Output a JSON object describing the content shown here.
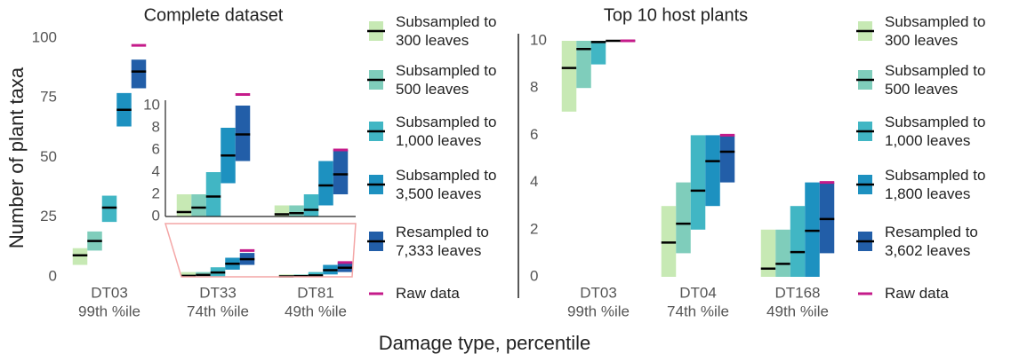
{
  "chart_data": [
    {
      "type": "range",
      "title": "Complete dataset",
      "ylabel": "Number of plant taxa",
      "xlabel": "Damage type, percentile",
      "categories": [
        "DT03",
        "DT33",
        "DT81"
      ],
      "category_percentiles": [
        "99th %ile",
        "74th %ile",
        "49th %ile"
      ],
      "ylim": [
        0,
        100
      ],
      "yticks": [
        0,
        25,
        50,
        75,
        100
      ],
      "series": [
        {
          "name": "Subsampled to 300 leaves",
          "color": "#c7e9b4",
          "low": [
            5,
            0,
            0
          ],
          "high": [
            12,
            2,
            1
          ],
          "median": [
            9,
            0.4,
            0.2
          ]
        },
        {
          "name": "Subsampled to 500 leaves",
          "color": "#7fcdbb",
          "low": [
            11,
            0,
            0
          ],
          "high": [
            19,
            2,
            1
          ],
          "median": [
            15,
            0.8,
            0.3
          ]
        },
        {
          "name": "Subsampled to 1,000 leaves",
          "color": "#41b6c4",
          "low": [
            23,
            0,
            0
          ],
          "high": [
            34,
            4,
            2
          ],
          "median": [
            29,
            1.8,
            0.6
          ]
        },
        {
          "name": "Subsampled to 3,500 leaves",
          "color": "#1d91c0",
          "low": [
            63,
            3,
            1
          ],
          "high": [
            77,
            8,
            5
          ],
          "median": [
            70,
            5.5,
            2.8
          ]
        },
        {
          "name": "Resampled to 7,333 leaves",
          "color": "#225ea8",
          "low": [
            79,
            5,
            2
          ],
          "high": [
            91,
            10,
            6
          ],
          "median": [
            86,
            7.4,
            3.8
          ]
        }
      ],
      "raw": {
        "name": "Raw data",
        "color": "#c51b8a",
        "values": [
          97,
          11,
          6
        ]
      },
      "inset": {
        "ylim": [
          0,
          10
        ],
        "yticks": [
          0,
          2,
          4,
          6,
          8,
          10
        ]
      }
    },
    {
      "type": "range",
      "title": "Top 10 host plants",
      "categories": [
        "DT03",
        "DT04",
        "DT168"
      ],
      "category_percentiles": [
        "99th %ile",
        "74th %ile",
        "49th %ile"
      ],
      "ylim": [
        0,
        10
      ],
      "yticks": [
        0,
        2,
        4,
        6,
        8,
        10
      ],
      "series": [
        {
          "name": "Subsampled to 300 leaves",
          "color": "#c7e9b4",
          "low": [
            7,
            0,
            0
          ],
          "high": [
            10,
            3,
            2
          ],
          "median": [
            8.85,
            1.45,
            0.35
          ]
        },
        {
          "name": "Subsampled to 500 leaves",
          "color": "#7fcdbb",
          "low": [
            8,
            1,
            0
          ],
          "high": [
            10,
            4,
            2
          ],
          "median": [
            9.65,
            2.25,
            0.55
          ]
        },
        {
          "name": "Subsampled to 1,000 leaves",
          "color": "#41b6c4",
          "low": [
            9,
            2,
            0
          ],
          "high": [
            10,
            6,
            3
          ],
          "median": [
            9.95,
            3.65,
            1.05
          ]
        },
        {
          "name": "Subsampled to 1,800 leaves",
          "color": "#1d91c0",
          "low": [
            10,
            3,
            0
          ],
          "high": [
            10,
            6,
            4
          ],
          "median": [
            10,
            4.9,
            1.95
          ]
        },
        {
          "name": "Resampled to 3,602 leaves",
          "color": "#225ea8",
          "low": [
            10,
            4,
            1
          ],
          "high": [
            10,
            6,
            4
          ],
          "median": [
            10,
            5.3,
            2.45
          ]
        }
      ],
      "raw": {
        "name": "Raw data",
        "color": "#c51b8a",
        "values": [
          10,
          6,
          4
        ]
      }
    }
  ]
}
